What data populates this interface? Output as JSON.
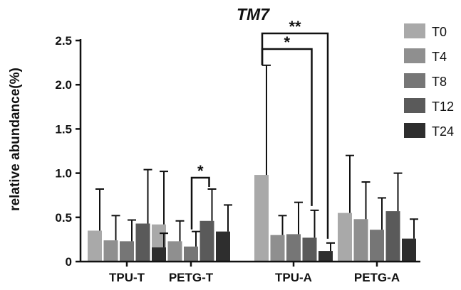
{
  "chart_data": {
    "type": "bar",
    "title": "TM7",
    "xlabel": "",
    "ylabel": "relative abundance(%)",
    "ylim": [
      0,
      2.5
    ],
    "yticks": [
      "0",
      "0.5",
      "1.0",
      "1.5",
      "2.0",
      "2.5"
    ],
    "grid": false,
    "legend_position": "top-right",
    "categories": [
      "TPU-T",
      "PETG-T",
      "TPU-A",
      "PETG-A"
    ],
    "series": [
      {
        "name": "T0",
        "color": "#a9a9a9",
        "values": [
          0.35,
          0.42,
          0.98,
          0.55
        ],
        "errors": [
          0.47,
          0.6,
          1.24,
          0.65
        ]
      },
      {
        "name": "T4",
        "color": "#8f8f8f",
        "values": [
          0.24,
          0.23,
          0.3,
          0.48
        ],
        "errors": [
          0.28,
          0.23,
          0.22,
          0.42
        ]
      },
      {
        "name": "T8",
        "color": "#767676",
        "values": [
          0.23,
          0.17,
          0.31,
          0.36
        ],
        "errors": [
          0.24,
          0.17,
          0.36,
          0.36
        ]
      },
      {
        "name": "T12",
        "color": "#5a5a5a",
        "values": [
          0.43,
          0.46,
          0.27,
          0.57
        ],
        "errors": [
          0.61,
          0.36,
          0.31,
          0.43
        ]
      },
      {
        "name": "T24",
        "color": "#2e2e2e",
        "values": [
          0.16,
          0.34,
          0.12,
          0.26
        ],
        "errors": [
          0.16,
          0.3,
          0.09,
          0.22
        ]
      }
    ],
    "significance": [
      {
        "label": "*",
        "category": 1,
        "from_series": 2,
        "to_series": 3
      },
      {
        "label": "*",
        "category": 2,
        "from_series": 0,
        "to_series": 3
      },
      {
        "label": "**",
        "category": 2,
        "from_series": 0,
        "to_series": 4
      }
    ]
  }
}
